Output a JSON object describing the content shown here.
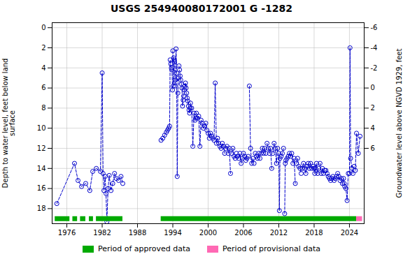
{
  "chart_data": {
    "type": "line",
    "title": "USGS 254940080172001 G  -1282",
    "ylabel": "Depth to water level, feet below land\nsurface",
    "y2label": "Groundwater level above NGVD 1929, feet",
    "xlim": [
      1973.5,
      2026.5
    ],
    "xticks": [
      1976,
      1982,
      1988,
      1994,
      2000,
      2006,
      2012,
      2018,
      2024
    ],
    "ylim": [
      19.5,
      -0.5
    ],
    "yticks": [
      0,
      2,
      4,
      6,
      8,
      10,
      12,
      14,
      16,
      18
    ],
    "y2lim": [
      13.5,
      -6.5
    ],
    "y2ticks": [
      6,
      4,
      2,
      0,
      -2,
      -4,
      -6
    ],
    "grid": true,
    "legend": "bottom",
    "series": [
      {
        "type": "line",
        "color": "#0000cc",
        "marker": "circle",
        "line_style": "dashed",
        "segments": [
          {
            "x": [
              1974.3,
              1977.3,
              1977.9,
              1978.5,
              1979.2,
              1979.9,
              1980.4,
              1981.0,
              1981.7,
              1982.0,
              1982.15,
              1982.3,
              1982.5,
              1982.65,
              1982.8,
              1983.0,
              1983.2,
              1983.5,
              1983.8,
              1984.1,
              1984.4,
              1984.8,
              1985.2,
              1985.5
            ],
            "values": [
              17.5,
              13.5,
              15.2,
              15.8,
              15.5,
              16.2,
              14.3,
              14.0,
              14.3,
              4.5,
              14.5,
              16.2,
              14.8,
              16.5,
              19.3,
              16.0,
              14.7,
              16.2,
              15.5,
              14.5,
              15.0,
              15.2,
              14.8,
              15.5
            ]
          },
          {
            "x": [
              1992.0,
              1992.3,
              1992.6,
              1992.9,
              1993.1,
              1993.3,
              1993.45,
              1993.55,
              1993.65,
              1993.75,
              1993.85,
              1993.95
            ],
            "values": [
              11.2,
              11.0,
              10.7,
              10.4,
              10.2,
              10.0,
              9.8,
              3.2,
              3.6,
              4.0,
              4.2,
              6.2
            ]
          },
          {
            "x": [
              1994.0,
              1994.08,
              1994.15,
              1994.22,
              1994.3,
              1994.38,
              1994.45,
              1994.55,
              1994.65,
              1994.75,
              1994.85,
              1994.95
            ],
            "values": [
              2.3,
              5.8,
              3.0,
              3.2,
              3.4,
              5.8,
              5.2,
              2.1,
              4.5,
              14.8,
              6.5,
              5.0
            ]
          },
          {
            "x": [
              1995.05,
              1995.15,
              1995.25,
              1995.35,
              1995.45,
              1995.55,
              1995.65,
              1995.75,
              1995.85,
              1995.95
            ],
            "values": [
              3.8,
              4.2,
              4.8,
              5.2,
              5.6,
              6.0,
              7.8,
              7.2,
              6.8,
              6.2
            ]
          },
          {
            "x": [
              1996.05,
              1996.15,
              1996.25,
              1996.35,
              1996.45,
              1996.55,
              1996.65,
              1996.75,
              1996.85,
              1996.95
            ],
            "values": [
              5.8,
              5.5,
              6.0,
              6.5,
              7.0,
              7.3,
              7.8,
              8.2,
              8.5,
              8.0
            ]
          },
          {
            "x": [
              1997.0,
              1997.2,
              1997.4,
              1997.6,
              1997.8,
              1997.9
            ],
            "values": [
              7.5,
              8.0,
              11.8,
              8.5,
              9.2,
              9.0
            ]
          },
          {
            "x": [
              1998.0,
              1998.2,
              1998.4,
              1998.6,
              1998.8
            ],
            "values": [
              8.5,
              9.0,
              8.8,
              11.8,
              9.2
            ]
          },
          {
            "x": [
              1999.0,
              1999.2,
              1999.4,
              1999.6,
              1999.8
            ],
            "values": [
              9.5,
              10.0,
              9.8,
              9.5,
              10.2
            ]
          },
          {
            "x": [
              2000.0,
              2000.2,
              2000.4,
              2000.6,
              2000.8
            ],
            "values": [
              10.5,
              11.0,
              10.5,
              10.8,
              11.0
            ]
          },
          {
            "x": [
              2001.0,
              2001.2,
              2001.4,
              2001.6,
              2001.8
            ],
            "values": [
              11.2,
              5.5,
              11.5,
              11.0,
              11.5
            ]
          },
          {
            "x": [
              2002.0,
              2002.2,
              2002.4,
              2002.6,
              2002.8
            ],
            "values": [
              11.8,
              12.0,
              11.5,
              11.8,
              12.5
            ]
          },
          {
            "x": [
              2003.0,
              2003.2,
              2003.4,
              2003.6,
              2003.8
            ],
            "values": [
              12.0,
              11.8,
              12.5,
              12.0,
              14.5
            ]
          },
          {
            "x": [
              2004.0,
              2004.2,
              2004.4,
              2004.6,
              2004.8
            ],
            "values": [
              12.5,
              12.0,
              12.8,
              13.0,
              12.5
            ]
          },
          {
            "x": [
              2005.0,
              2005.2,
              2005.4,
              2005.6,
              2005.8
            ],
            "values": [
              12.8,
              13.0,
              12.5,
              13.5,
              13.0
            ]
          },
          {
            "x": [
              2006.0,
              2006.2,
              2006.4,
              2006.6,
              2006.8
            ],
            "values": [
              12.5,
              12.8,
              13.2,
              13.0,
              12.8
            ]
          },
          {
            "x": [
              2007.0,
              2007.2,
              2007.4,
              2007.6,
              2007.8
            ],
            "values": [
              5.8,
              12.0,
              13.5,
              13.0,
              13.5
            ]
          },
          {
            "x": [
              2008.0,
              2008.2,
              2008.4,
              2008.6,
              2008.8
            ],
            "values": [
              12.5,
              12.8,
              13.0,
              12.5,
              13.0
            ]
          },
          {
            "x": [
              2009.0,
              2009.2,
              2009.4,
              2009.6,
              2009.8
            ],
            "values": [
              12.5,
              12.0,
              12.5,
              12.0,
              12.5
            ]
          },
          {
            "x": [
              2010.0,
              2010.2,
              2010.4,
              2010.6,
              2010.8
            ],
            "values": [
              11.5,
              12.0,
              12.5,
              12.0,
              14.0
            ]
          },
          {
            "x": [
              2011.0,
              2011.2,
              2011.4,
              2011.6,
              2011.8
            ],
            "values": [
              12.5,
              11.5,
              12.0,
              13.5,
              12.0
            ]
          },
          {
            "x": [
              2012.0,
              2012.1,
              2012.2,
              2012.4,
              2012.6,
              2012.8
            ],
            "values": [
              12.5,
              18.2,
              13.0,
              12.8,
              12.5,
              12.0
            ]
          },
          {
            "x": [
              2013.0,
              2013.1,
              2013.2,
              2013.4,
              2013.6,
              2013.8
            ],
            "values": [
              18.5,
              13.5,
              13.2,
              13.0,
              12.8,
              12.5
            ]
          },
          {
            "x": [
              2014.0,
              2014.2,
              2014.4,
              2014.6,
              2014.8
            ],
            "values": [
              12.8,
              12.5,
              13.5,
              13.0,
              15.5
            ]
          },
          {
            "x": [
              2015.0,
              2015.2,
              2015.4,
              2015.6,
              2015.8
            ],
            "values": [
              13.5,
              13.0,
              13.8,
              14.0,
              14.5
            ]
          },
          {
            "x": [
              2016.0,
              2016.2,
              2016.4,
              2016.6,
              2016.8
            ],
            "values": [
              14.0,
              13.5,
              14.0,
              14.5,
              13.8
            ]
          },
          {
            "x": [
              2017.0,
              2017.2,
              2017.4,
              2017.6,
              2017.8
            ],
            "values": [
              13.5,
              14.0,
              13.5,
              14.0,
              13.8
            ]
          },
          {
            "x": [
              2018.0,
              2018.1,
              2018.2,
              2018.4,
              2018.6,
              2018.8
            ],
            "values": [
              14.0,
              14.5,
              14.0,
              13.5,
              14.5,
              14.0
            ]
          },
          {
            "x": [
              2019.0,
              2019.2,
              2019.4,
              2019.6,
              2019.8
            ],
            "values": [
              13.5,
              14.5,
              14.0,
              14.5,
              14.2
            ]
          },
          {
            "x": [
              2020.0,
              2020.2,
              2020.4,
              2020.6,
              2020.8
            ],
            "values": [
              14.2,
              14.5,
              14.8,
              15.0,
              15.2
            ]
          },
          {
            "x": [
              2021.0,
              2021.2,
              2021.4,
              2021.6,
              2021.8
            ],
            "values": [
              15.0,
              14.8,
              15.2,
              15.0,
              14.8
            ]
          },
          {
            "x": [
              2022.0,
              2022.2,
              2022.4,
              2022.6,
              2022.8
            ],
            "values": [
              14.5,
              14.8,
              15.2,
              15.0,
              15.5
            ]
          },
          {
            "x": [
              2023.0,
              2023.1,
              2023.2,
              2023.4,
              2023.6,
              2023.8
            ],
            "values": [
              15.0,
              15.5,
              15.8,
              16.0,
              17.2,
              14.5
            ]
          },
          {
            "x": [
              2024.0,
              2024.1,
              2024.2,
              2024.4,
              2024.6,
              2024.8
            ],
            "values": [
              14.5,
              2.0,
              13.0,
              14.0,
              14.5,
              13.8
            ]
          },
          {
            "x": [
              2025.0,
              2025.2,
              2025.5,
              2025.8
            ],
            "values": [
              14.2,
              10.5,
              12.5,
              10.8
            ]
          }
        ]
      },
      {
        "name": "Period of approved data",
        "type": "span",
        "color": "#00aa00",
        "y": 19.0,
        "periods": [
          [
            1974.0,
            1976.5
          ],
          [
            1977.0,
            1977.8
          ],
          [
            1978.3,
            1979.2
          ],
          [
            1979.8,
            1980.5
          ],
          [
            1981.0,
            1985.5
          ],
          [
            1992.0,
            2025.2
          ]
        ]
      },
      {
        "name": "Period of provisional data",
        "type": "span",
        "color": "#ff69b4",
        "y": 19.0,
        "periods": [
          [
            2025.2,
            2026.2
          ]
        ]
      }
    ]
  }
}
